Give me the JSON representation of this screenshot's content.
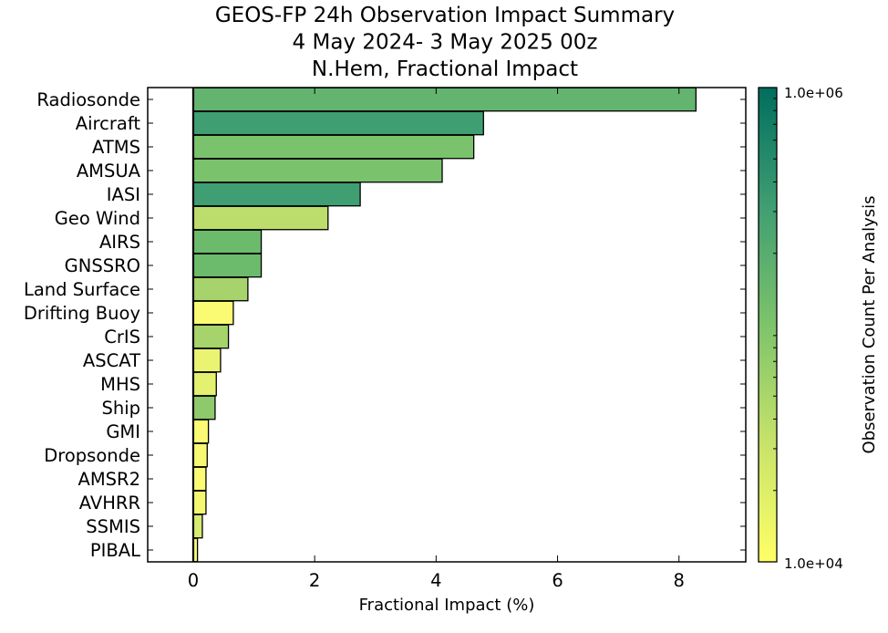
{
  "chart_data": {
    "type": "bar",
    "orientation": "horizontal",
    "title_lines": [
      "GEOS-FP 24h Observation Impact Summary",
      "4 May 2024- 3 May 2025 00z",
      "N.Hem, Fractional Impact"
    ],
    "xlabel": "Fractional Impact (%)",
    "ylabel": "",
    "xlim": [
      -0.75,
      9.1
    ],
    "xticks": [
      0,
      2,
      4,
      6,
      8
    ],
    "xtick_labels": [
      "0",
      "2",
      "4",
      "6",
      "8"
    ],
    "categories": [
      "Radiosonde",
      "Aircraft",
      "ATMS",
      "AMSUA",
      "IASI",
      "Geo Wind",
      "AIRS",
      "GNSSRO",
      "Land Surface",
      "Drifting Buoy",
      "CrIS",
      "ASCAT",
      "MHS",
      "Ship",
      "GMI",
      "Dropsonde",
      "AMSR2",
      "AVHRR",
      "SSMIS",
      "PIBAL"
    ],
    "values": [
      8.28,
      4.78,
      4.62,
      4.1,
      2.75,
      2.22,
      1.12,
      1.12,
      0.9,
      0.66,
      0.58,
      0.45,
      0.38,
      0.36,
      0.25,
      0.23,
      0.21,
      0.21,
      0.15,
      0.07
    ],
    "bar_colors": [
      "#63b46e",
      "#3f9e72",
      "#7ac26c",
      "#7ac26c",
      "#3f9e72",
      "#bcdd6b",
      "#6cbb6c",
      "#6cbb6c",
      "#a6d36b",
      "#fbfa73",
      "#a6d36b",
      "#eaf372",
      "#e3f070",
      "#8ec96c",
      "#fafa74",
      "#f8f872",
      "#fafa74",
      "#f4f672",
      "#d6eb6f",
      "#f6f772"
    ],
    "colorbar": {
      "label": "Observation Count Per Analysis",
      "scale": "log",
      "min_label": "1.0e+04",
      "max_label": "1.0e+06",
      "colors": [
        "#ffff66",
        "#c7e36a",
        "#7dc36b",
        "#3f9e72",
        "#006e5e"
      ]
    },
    "grid": false
  }
}
